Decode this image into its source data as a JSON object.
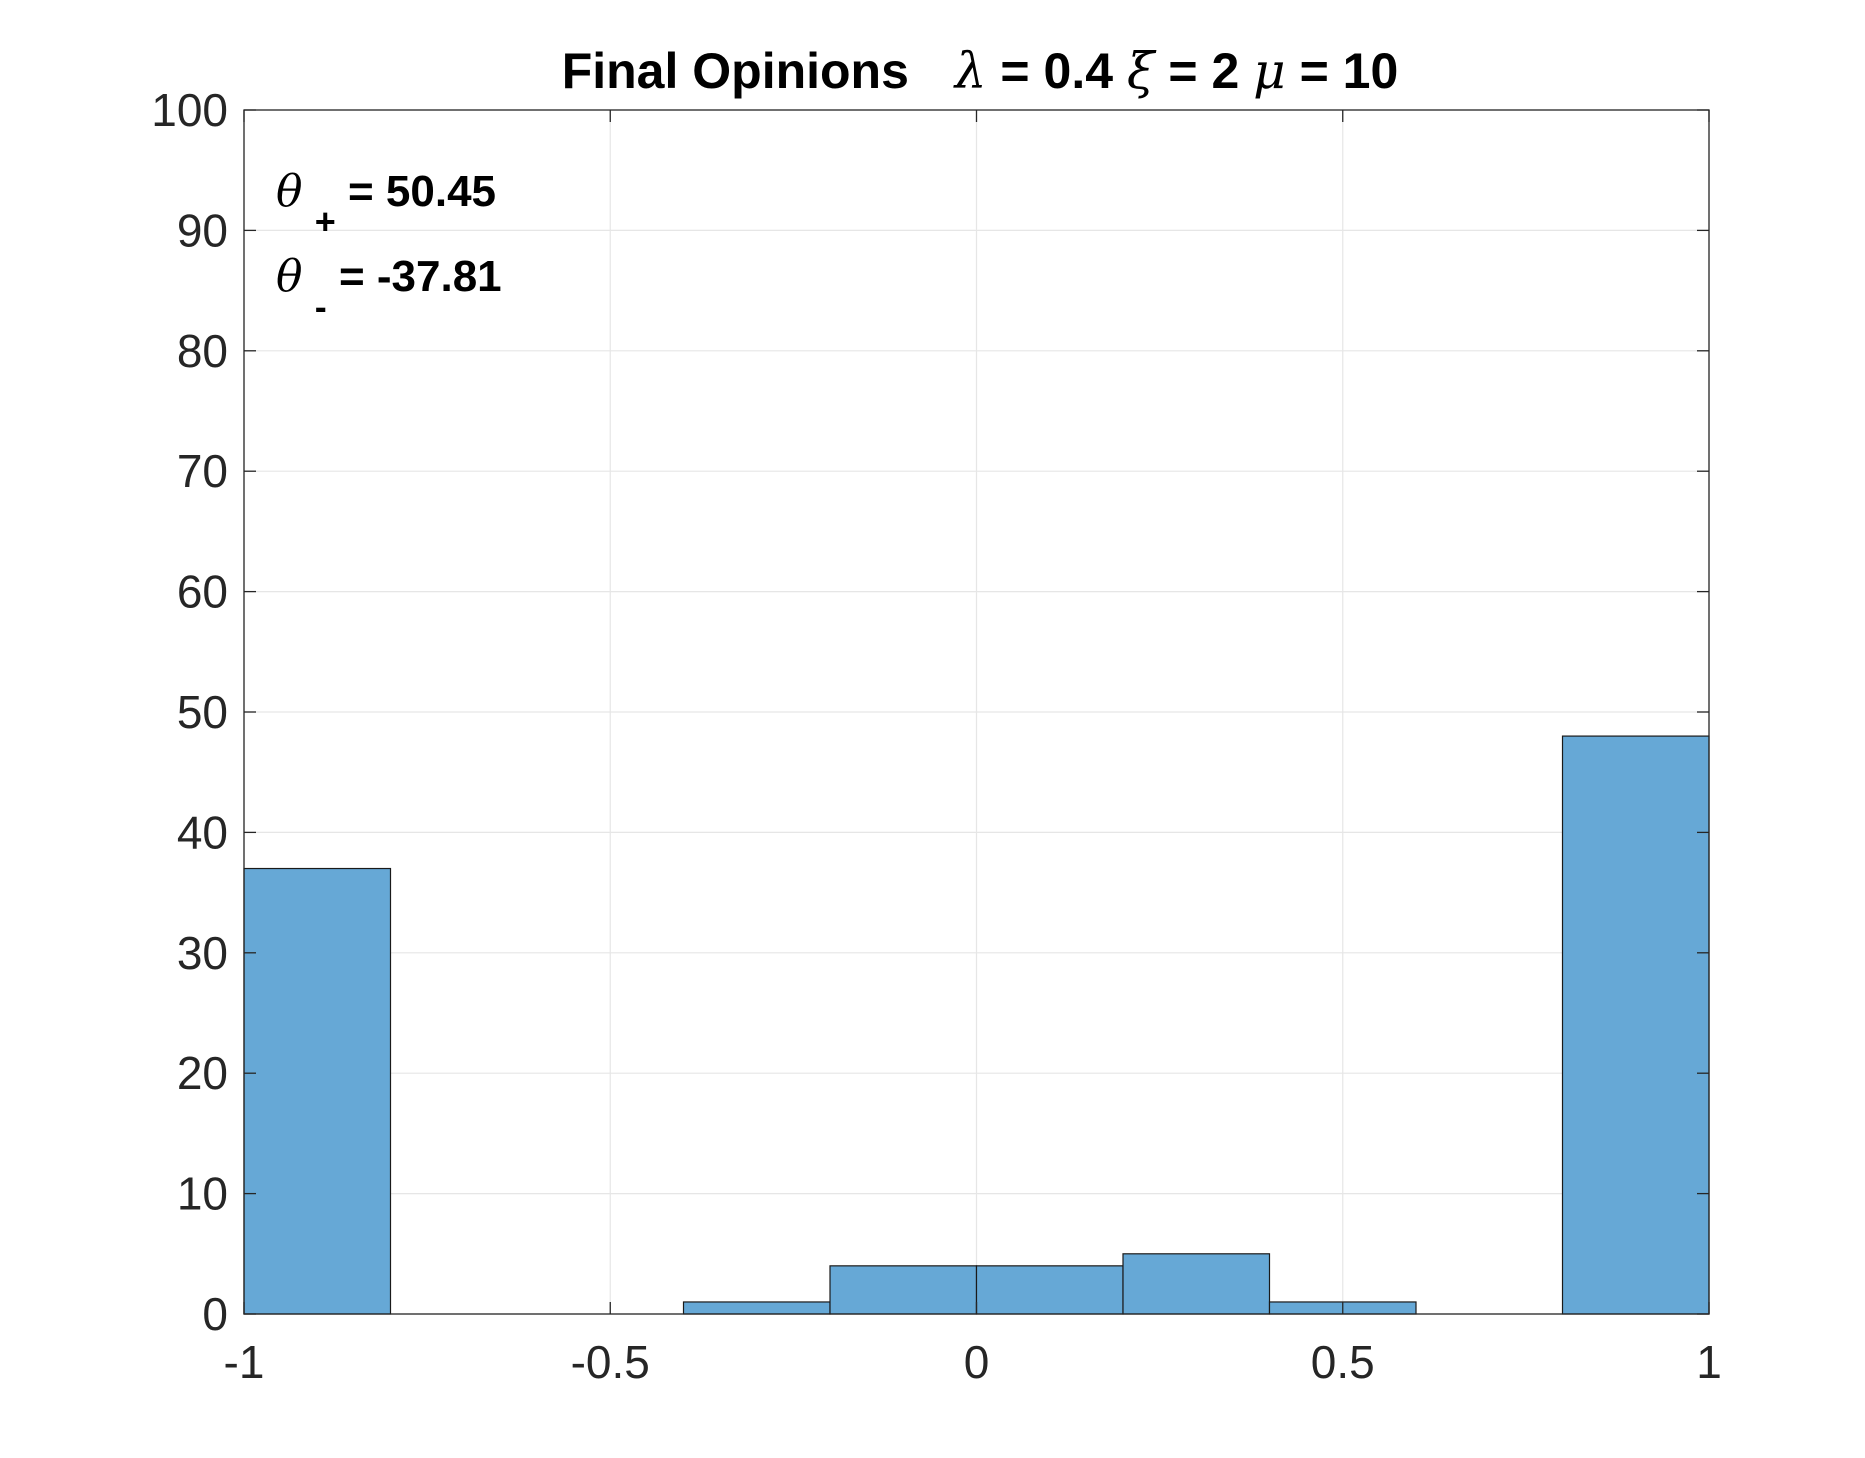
{
  "chart_data": {
    "type": "bar",
    "title": {
      "prefix": "Final Opinions",
      "lambda_symbol": "λ",
      "lambda_text": " = 0.4 ",
      "xi_symbol": "ξ",
      "xi_text": " = 2 ",
      "mu_symbol": "μ",
      "mu_text": " = 10"
    },
    "annotations": {
      "theta_symbol": "θ",
      "plus_sub": "+",
      "plus_text": " = 50.45",
      "minus_sub": "-",
      "minus_text": " = -37.81"
    },
    "xlabel": "",
    "ylabel": "",
    "xlim": [
      -1,
      1
    ],
    "ylim": [
      0,
      100
    ],
    "xticks": [
      -1,
      -0.5,
      0,
      0.5,
      1
    ],
    "xtick_labels": [
      "-1",
      "-0.5",
      "0",
      "0.5",
      "1"
    ],
    "yticks": [
      0,
      10,
      20,
      30,
      40,
      50,
      60,
      70,
      80,
      90,
      100
    ],
    "ytick_labels": [
      "0",
      "10",
      "20",
      "30",
      "40",
      "50",
      "60",
      "70",
      "80",
      "90",
      "100"
    ],
    "grid": true,
    "bar_color": "#66a8d6",
    "bins": [
      {
        "x0": -1.0,
        "x1": -0.8,
        "value": 37
      },
      {
        "x0": -0.8,
        "x1": -0.6,
        "value": 0
      },
      {
        "x0": -0.6,
        "x1": -0.4,
        "value": 0
      },
      {
        "x0": -0.4,
        "x1": -0.2,
        "value": 1
      },
      {
        "x0": -0.2,
        "x1": 0.0,
        "value": 4
      },
      {
        "x0": 0.0,
        "x1": 0.2,
        "value": 4
      },
      {
        "x0": 0.2,
        "x1": 0.4,
        "value": 5
      },
      {
        "x0": 0.4,
        "x1": 0.6,
        "value": 1
      },
      {
        "x0": 0.6,
        "x1": 0.8,
        "value": 0
      },
      {
        "x0": 0.8,
        "x1": 1.0,
        "value": 48
      }
    ]
  }
}
